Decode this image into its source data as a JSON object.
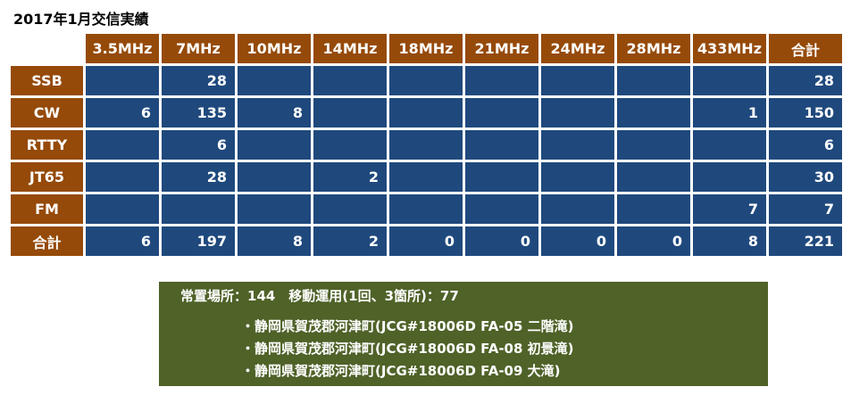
{
  "title": "2017年1月交信実績",
  "columns": [
    "3.5MHz",
    "7MHz",
    "10MHz",
    "14MHz",
    "18MHz",
    "21MHz",
    "24MHz",
    "28MHz",
    "433MHz",
    "合計"
  ],
  "rows": [
    {
      "label": "SSB",
      "values": [
        "",
        "28",
        "",
        "",
        "",
        "",
        "",
        "",
        "",
        "28"
      ]
    },
    {
      "label": "CW",
      "values": [
        "6",
        "135",
        "8",
        "",
        "",
        "",
        "",
        "",
        "1",
        "150"
      ]
    },
    {
      "label": "RTTY",
      "values": [
        "",
        "6",
        "",
        "",
        "",
        "",
        "",
        "",
        "",
        "6"
      ]
    },
    {
      "label": "JT65",
      "values": [
        "",
        "28",
        "",
        "2",
        "",
        "",
        "",
        "",
        "",
        "30"
      ]
    },
    {
      "label": "FM",
      "values": [
        "",
        "",
        "",
        "",
        "",
        "",
        "",
        "",
        "7",
        "7"
      ]
    },
    {
      "label": "合計",
      "values": [
        "6",
        "197",
        "8",
        "2",
        "0",
        "0",
        "0",
        "0",
        "8",
        "221"
      ]
    }
  ],
  "summary": {
    "line": "常置場所：144　移動運用(1回、3箇所)：77",
    "locations": [
      "・静岡県賀茂郡河津町(JCG#18006D FA-05 二階滝)",
      "・静岡県賀茂郡河津町(JCG#18006D FA-08 初景滝)",
      "・静岡県賀茂郡河津町(JCG#18006D FA-09 大滝)"
    ]
  },
  "colors": {
    "header": "#954A09",
    "cell": "#1F497D",
    "summary": "#4F6228"
  }
}
